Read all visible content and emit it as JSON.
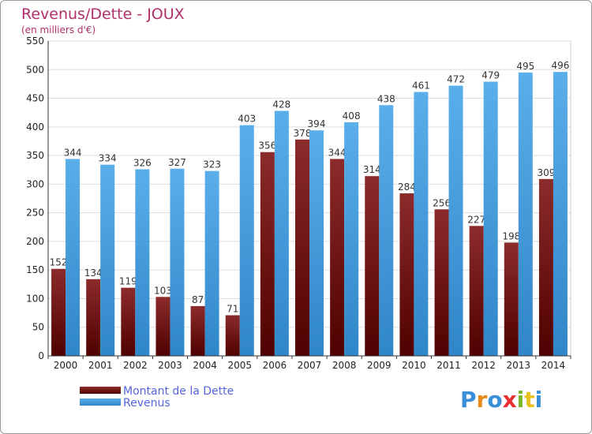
{
  "chart_data": {
    "type": "bar",
    "title": "Revenus/Dette - JOUX",
    "subtitle": "(en milliers d'€)",
    "categories": [
      "2000",
      "2001",
      "2002",
      "2003",
      "2004",
      "2005",
      "2006",
      "2007",
      "2008",
      "2009",
      "2010",
      "2011",
      "2012",
      "2013",
      "2014"
    ],
    "series": [
      {
        "name": "Montant de la Dette",
        "color": "#7a1e1e",
        "values": [
          152,
          134,
          119,
          103,
          87,
          71,
          356,
          378,
          344,
          314,
          284,
          256,
          227,
          198,
          309
        ]
      },
      {
        "name": "Revenus",
        "color": "#4a9fe0",
        "values": [
          344,
          334,
          326,
          327,
          323,
          403,
          428,
          394,
          408,
          438,
          461,
          472,
          479,
          495,
          496
        ]
      }
    ],
    "ylim": [
      0,
      550
    ],
    "yticks": [
      0,
      50,
      100,
      150,
      200,
      250,
      300,
      350,
      400,
      450,
      500,
      550
    ],
    "grid": true,
    "legend": "bottom-left"
  },
  "logo": {
    "letters": [
      {
        "ch": "P",
        "color": "#3a8fd8"
      },
      {
        "ch": "r",
        "color": "#e88a1a"
      },
      {
        "ch": "o",
        "color": "#3a8fd8"
      },
      {
        "ch": "x",
        "color": "#e83030"
      },
      {
        "ch": "i",
        "color": "#7ab829"
      },
      {
        "ch": "t",
        "color": "#e8c020"
      },
      {
        "ch": "i",
        "color": "#3a8fd8"
      }
    ]
  }
}
